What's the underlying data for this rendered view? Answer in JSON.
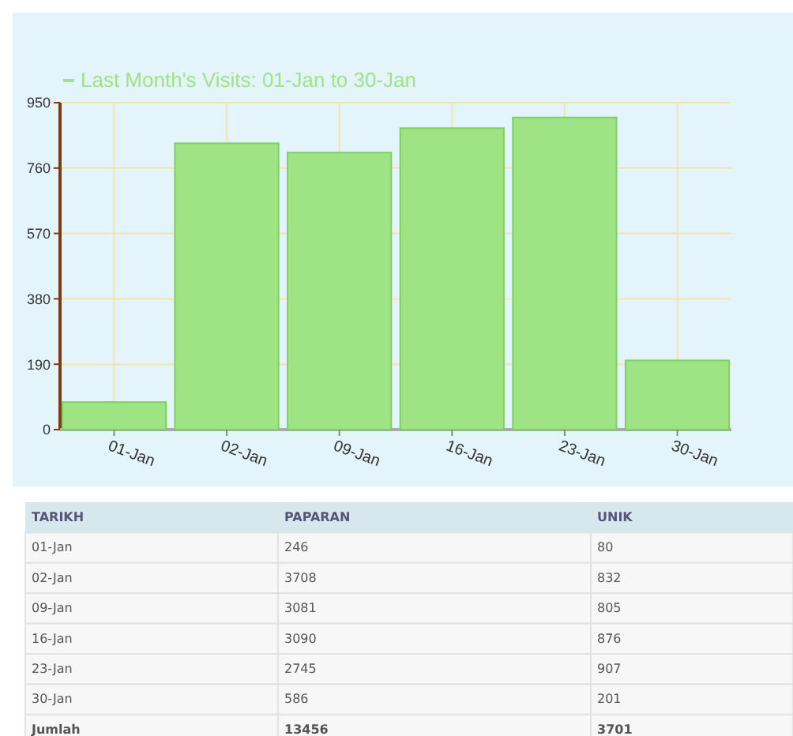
{
  "chart_data": [
    {
      "type": "bar",
      "categories": [
        "01-Jan",
        "02-Jan",
        "09-Jan",
        "16-Jan",
        "23-Jan",
        "30-Jan"
      ],
      "series": [
        {
          "name": "Last Month's Visits: 01-Jan to 30-Jan",
          "color": "#9ee484",
          "values": [
            80,
            832,
            805,
            876,
            907,
            201
          ]
        }
      ],
      "ylim": [
        0,
        950
      ],
      "yticks": [
        0,
        190,
        380,
        570,
        760,
        950
      ],
      "grid": true,
      "legend": "top left"
    },
    {
      "type": "other",
      "xlabel": "TARIKH",
      "data_labels": true,
      "categories": [
        "01-Jan",
        "02-Jan",
        "09-Jan",
        "16-Jan",
        "23-Jan",
        "30-Jan",
        "Jumlah"
      ],
      "series": [
        {
          "name": "PAPARAN",
          "values": [
            246,
            3708,
            3081,
            3090,
            2745,
            586,
            13456
          ]
        },
        {
          "name": "UNIK",
          "values": [
            80,
            832,
            805,
            876,
            907,
            201,
            3701
          ]
        }
      ]
    }
  ]
}
